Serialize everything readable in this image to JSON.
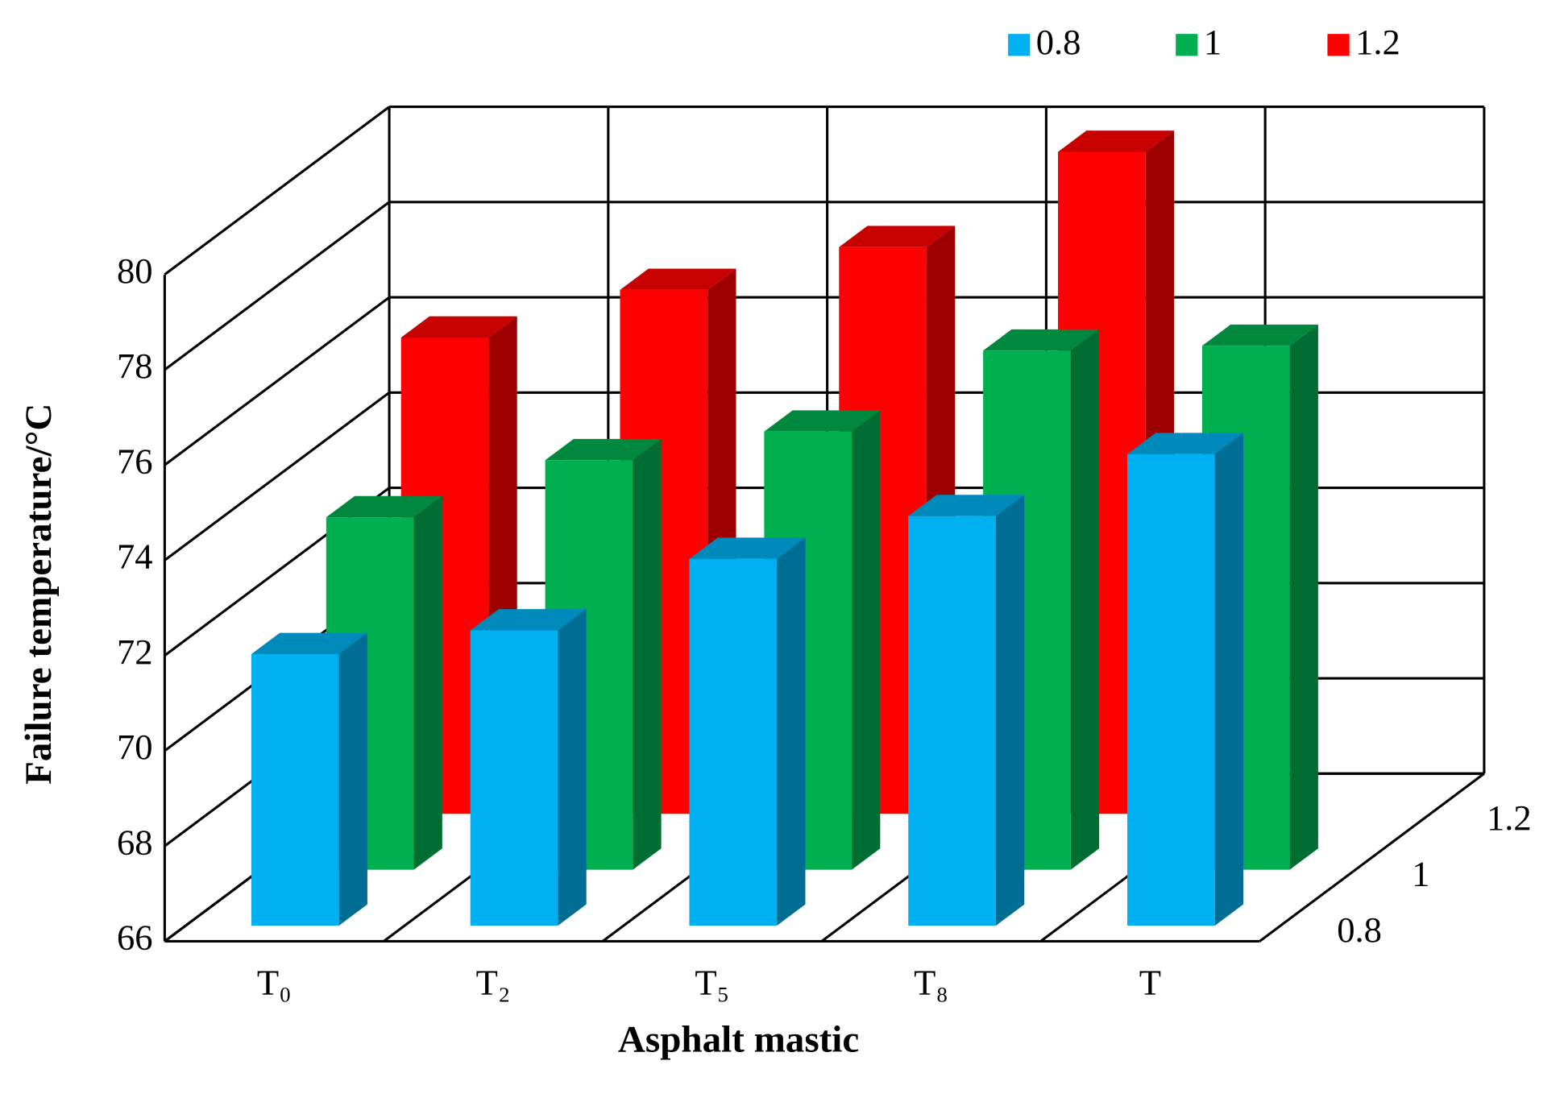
{
  "chart_data": {
    "type": "bar3d",
    "x_label": "Asphalt mastic",
    "y_label": "Failure temperature/°C",
    "categories": [
      "T₀",
      "T₂",
      "T₅",
      "T₈",
      "T"
    ],
    "series": [
      {
        "name": "0.8",
        "color": "#00b0f0",
        "values": [
          71.7,
          72.2,
          73.7,
          74.6,
          75.9
        ]
      },
      {
        "name": "1",
        "color": "#00b050",
        "values": [
          73.4,
          74.6,
          75.2,
          76.9,
          77.0
        ]
      },
      {
        "name": "1.2",
        "color": "#ff0000",
        "values": [
          76.0,
          77.0,
          77.9,
          79.9,
          null
        ]
      }
    ],
    "ylim": [
      66,
      80
    ],
    "yticks": [
      66,
      68,
      70,
      72,
      74,
      76,
      78,
      80
    ],
    "grid": true,
    "legend": "top"
  }
}
